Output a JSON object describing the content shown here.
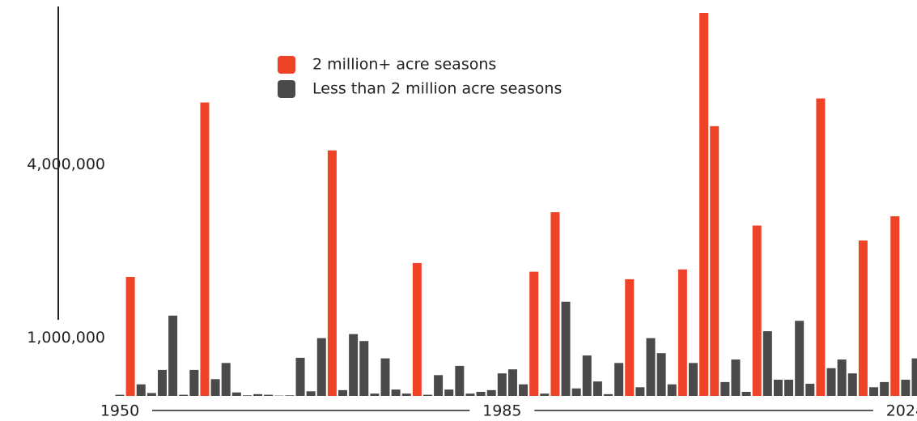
{
  "chart_data": {
    "type": "bar",
    "categories": [
      "1950",
      null,
      null,
      null,
      null,
      null,
      null,
      null,
      null,
      null,
      null,
      null,
      null,
      null,
      null,
      null,
      null,
      null,
      null,
      null,
      null,
      null,
      null,
      null,
      null,
      null,
      null,
      null,
      null,
      null,
      null,
      null,
      null,
      null,
      null,
      null,
      "1985",
      null,
      null,
      null,
      null,
      null,
      null,
      null,
      null,
      null,
      null,
      null,
      null,
      null,
      null,
      null,
      null,
      null,
      null,
      null,
      null,
      null,
      null,
      null,
      null,
      null,
      null,
      null,
      null,
      null,
      null,
      null,
      null,
      null,
      null,
      null,
      null,
      null,
      "2024",
      null
    ],
    "series": [
      {
        "name": "2 million+ acre seasons",
        "color": "#ee4326",
        "values": [
          null,
          2060000,
          null,
          null,
          null,
          null,
          null,
          null,
          5080000,
          null,
          null,
          null,
          null,
          null,
          null,
          null,
          null,
          null,
          null,
          null,
          4250000,
          null,
          null,
          null,
          null,
          null,
          null,
          null,
          2300000,
          null,
          null,
          null,
          null,
          null,
          null,
          null,
          null,
          null,
          null,
          2150000,
          null,
          3180000,
          null,
          null,
          null,
          null,
          null,
          null,
          2020000,
          null,
          null,
          null,
          null,
          2190000,
          null,
          6630000,
          4670000,
          null,
          null,
          null,
          2950000,
          null,
          null,
          null,
          null,
          null,
          5150000,
          null,
          null,
          null,
          2690000,
          null,
          null,
          3110000,
          null,
          null
        ]
      },
      {
        "name": "Less than 2 million acre seasons",
        "color": "#4a4a4a",
        "values": [
          20000,
          null,
          200000,
          50000,
          450000,
          1390000,
          20000,
          450000,
          null,
          290000,
          570000,
          60000,
          10000,
          30000,
          20000,
          5000,
          10000,
          660000,
          80000,
          1000000,
          null,
          100000,
          1070000,
          950000,
          40000,
          650000,
          110000,
          40000,
          null,
          20000,
          360000,
          110000,
          520000,
          40000,
          70000,
          100000,
          390000,
          460000,
          200000,
          null,
          40000,
          null,
          1630000,
          130000,
          700000,
          250000,
          30000,
          570000,
          null,
          150000,
          1000000,
          740000,
          200000,
          null,
          570000,
          null,
          null,
          240000,
          630000,
          70000,
          null,
          1120000,
          280000,
          280000,
          1300000,
          210000,
          null,
          480000,
          630000,
          390000,
          null,
          150000,
          240000,
          null,
          280000,
          650000
        ]
      }
    ],
    "ylim": [
      0,
      6700000
    ],
    "yticks": [
      {
        "value": 1000000,
        "label": "1,000,000"
      },
      {
        "value": 4000000,
        "label": "4,000,000"
      }
    ],
    "grid": false
  }
}
